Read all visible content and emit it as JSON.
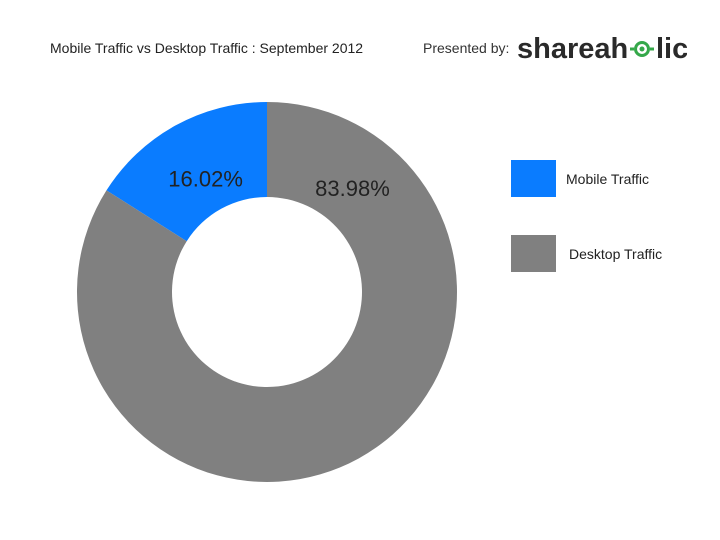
{
  "header": {
    "title": "Mobile Traffic vs Desktop Traffic : September 2012",
    "presented_by": "Presented by:",
    "logo_text_left": "shareah",
    "logo_text_right": "lic"
  },
  "colors": {
    "mobile": "#0a7cff",
    "desktop": "#808080",
    "logo_text": "#2a2a2a",
    "logo_accent": "#35a84a"
  },
  "chart_data": {
    "type": "pie",
    "title": "Mobile Traffic vs Desktop Traffic : September 2012",
    "donut": true,
    "legend_position": "right",
    "slices": [
      {
        "name": "Mobile Traffic",
        "value": 16.02,
        "label": "16.02%",
        "color": "#0a7cff"
      },
      {
        "name": "Desktop Traffic",
        "value": 83.98,
        "label": "83.98%",
        "color": "#808080"
      }
    ]
  }
}
